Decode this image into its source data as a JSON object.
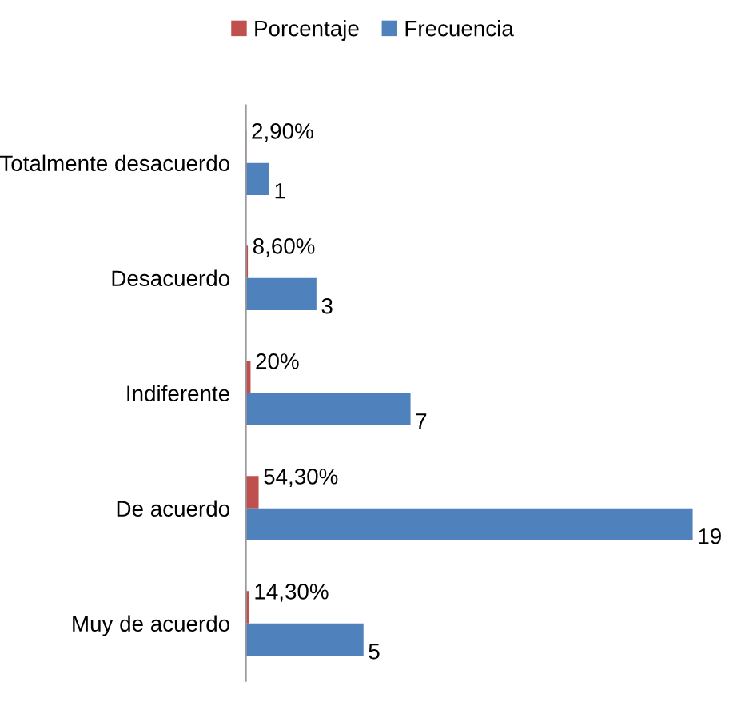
{
  "chart_data": {
    "type": "bar",
    "orientation": "horizontal",
    "categories": [
      "Totalmente desacuerdo",
      "Desacuerdo",
      "Indiferente",
      "De acuerdo",
      "Muy de acuerdo"
    ],
    "series": [
      {
        "name": "Porcentaje",
        "color": "#c0504d",
        "values": [
          0.029,
          0.086,
          0.2,
          0.543,
          0.143
        ],
        "value_labels": [
          "2,90%",
          "8,60%",
          "20%",
          "54,30%",
          "14,30%"
        ]
      },
      {
        "name": "Frecuencia",
        "color": "#4f81bd",
        "values": [
          1,
          3,
          7,
          19,
          5
        ],
        "value_labels": [
          "1",
          "3",
          "7",
          "19",
          "5"
        ]
      }
    ],
    "legend": "top",
    "grid": false,
    "tick_labels": "y"
  }
}
